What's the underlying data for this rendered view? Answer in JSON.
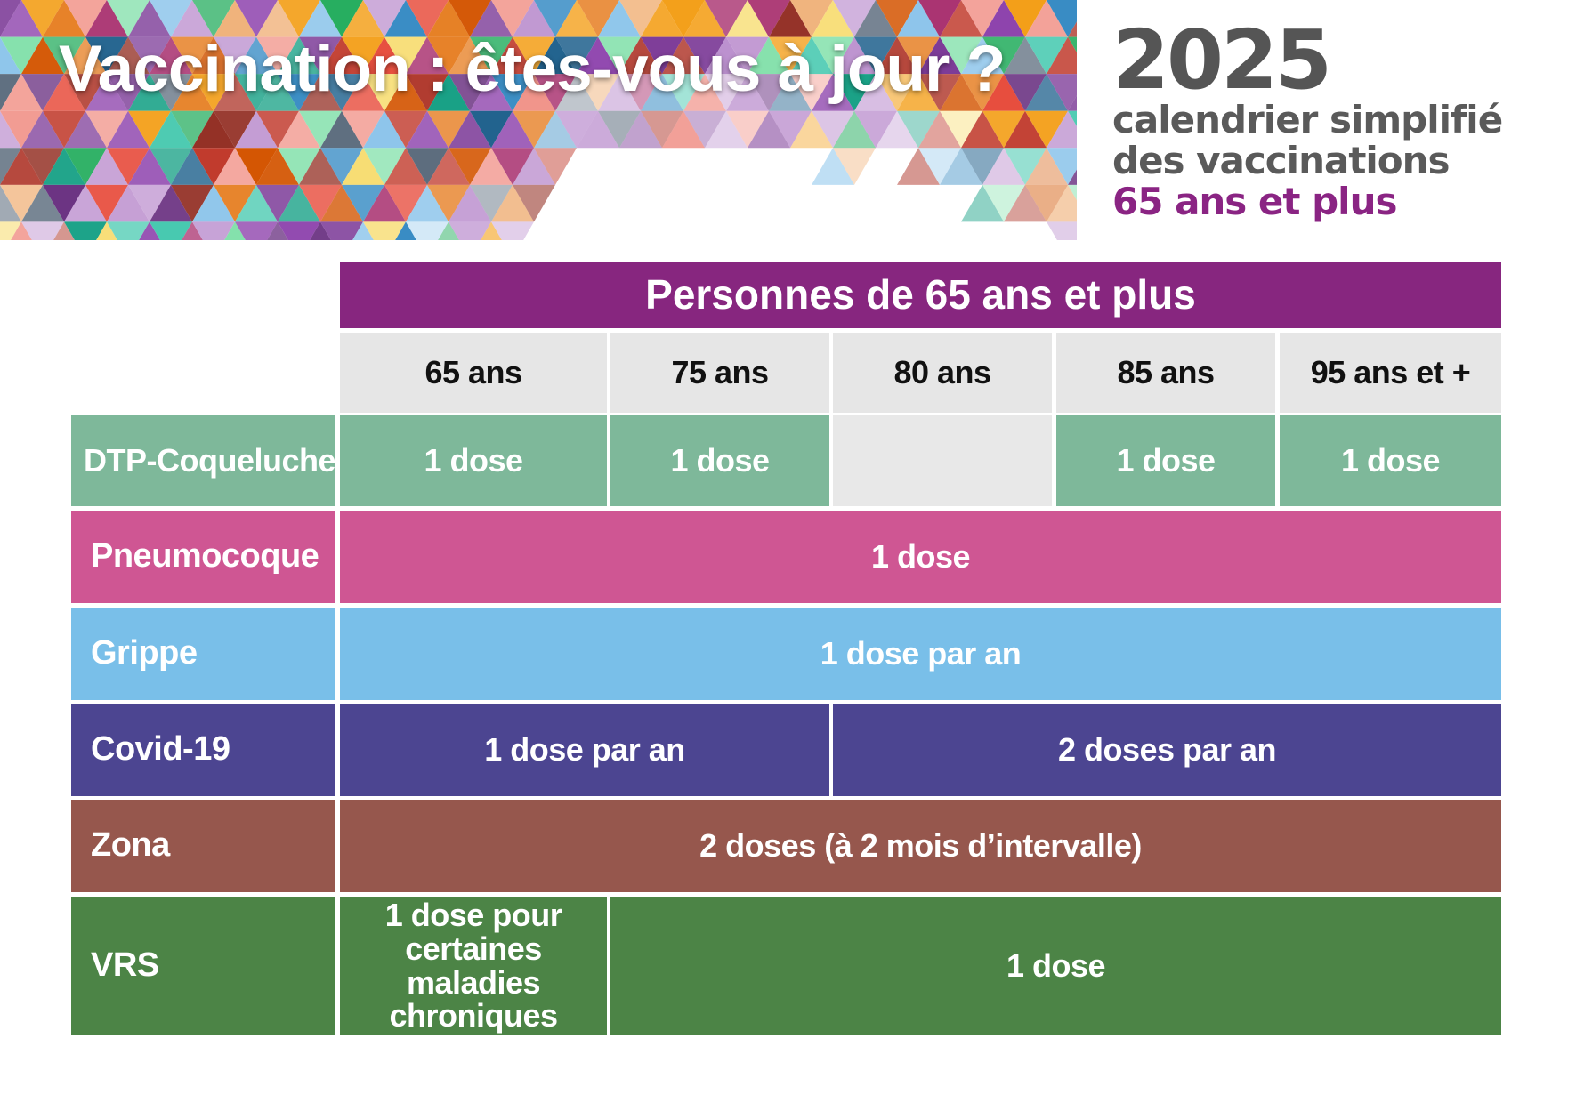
{
  "header": {
    "title": "Vaccination : êtes-vous à jour ?",
    "year": "2025",
    "subtitle_line1": "calendrier simplifié",
    "subtitle_line2": "des vaccinations",
    "subtitle_line3": "65 ans et plus"
  },
  "colors": {
    "purple": "#87267f",
    "dtp": "#7eb89a",
    "pneumocoque": "#cf5693",
    "grippe": "#79bfe9",
    "covid": "#4c4591",
    "zona": "#96574d",
    "vrs": "#4c8446"
  },
  "table": {
    "group_header": "Personnes de 65 ans et plus",
    "ages": [
      "65 ans",
      "75 ans",
      "80 ans",
      "85 ans",
      "95 ans et +"
    ],
    "rows": {
      "dtp": {
        "label": "DTP-Coqueluche",
        "cells": [
          "1 dose",
          "1 dose",
          "",
          "1 dose",
          "1 dose"
        ]
      },
      "pneumocoque": {
        "label": "Pneumocoque",
        "value": "1 dose"
      },
      "grippe": {
        "label": "Grippe",
        "value": "1 dose par an"
      },
      "covid": {
        "label": "Covid-19",
        "value_a": "1 dose par an",
        "value_b": "2 doses par an"
      },
      "zona": {
        "label": "Zona",
        "value": "2 doses (à 2 mois d’intervalle)"
      },
      "vrs": {
        "label": "VRS",
        "value_a_line1": "1 dose pour",
        "value_a_line2": "certaines maladies",
        "value_a_line3": "chroniques",
        "value_b": "1 dose"
      }
    }
  }
}
